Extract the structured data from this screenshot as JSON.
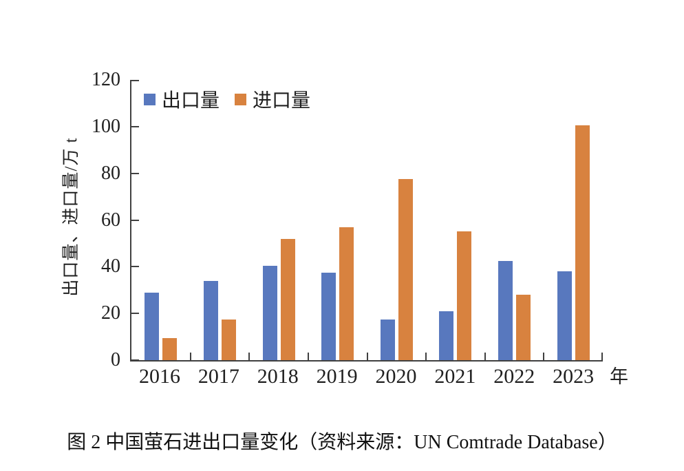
{
  "figure": {
    "caption": "图 2 中国萤石进出口量变化（资料来源：UN Comtrade Database）"
  },
  "chart_data": {
    "type": "bar",
    "title": "",
    "categories": [
      "2016",
      "2017",
      "2018",
      "2019",
      "2020",
      "2021",
      "2022",
      "2023"
    ],
    "series": [
      {
        "name": "出口量",
        "color": "#5878BE",
        "values": [
          29,
          34,
          40.5,
          37.5,
          17.5,
          21,
          42.5,
          38
        ]
      },
      {
        "name": "进口量",
        "color": "#D8823F",
        "values": [
          9.5,
          17.5,
          52,
          57,
          77.5,
          55,
          28,
          100.5
        ]
      }
    ],
    "ylabel": "出口量、进口量/万 t",
    "xlabel": "",
    "x_axis_unit": "年",
    "ylim": [
      0,
      120
    ],
    "yticks": [
      0,
      20,
      40,
      60,
      80,
      100,
      120
    ],
    "grid": false,
    "legend_position": "top-left-inside",
    "axis_color": "#404040",
    "text_color": "#1f1f1f"
  }
}
